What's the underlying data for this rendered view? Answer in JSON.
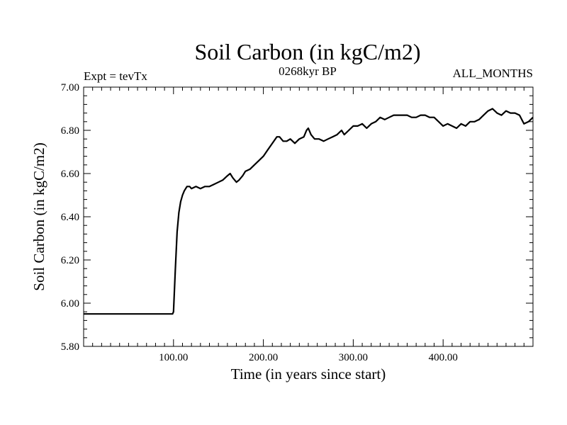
{
  "chart_data": {
    "type": "line",
    "title": "Soil Carbon (in kgC/m2)",
    "subtitle_left": "Expt = tevTx",
    "subtitle_center": "0268kyr BP",
    "subtitle_right": "ALL_MONTHS",
    "xlabel": "Time (in years since start)",
    "ylabel": "Soil Carbon (in kgC/m2)",
    "xlim": [
      0,
      500
    ],
    "ylim": [
      5.8,
      7.0
    ],
    "x_ticks": [
      100,
      200,
      300,
      400
    ],
    "x_tick_labels": [
      "100.00",
      "200.00",
      "300.00",
      "400.00"
    ],
    "y_ticks": [
      5.8,
      6.0,
      6.2,
      6.4,
      6.6,
      6.8,
      7.0
    ],
    "y_tick_labels": [
      "5.80",
      "6.00",
      "6.20",
      "6.40",
      "6.60",
      "6.80",
      "7.00"
    ],
    "grid": false,
    "series": [
      {
        "color": "#000000",
        "x": [
          0,
          99,
          100,
          102,
          104,
          106,
          108,
          110,
          112,
          115,
          118,
          120,
          125,
          130,
          135,
          140,
          145,
          150,
          155,
          160,
          163,
          166,
          170,
          173,
          177,
          180,
          185,
          190,
          195,
          200,
          205,
          210,
          215,
          218,
          222,
          226,
          230,
          235,
          240,
          245,
          248,
          250,
          253,
          257,
          262,
          267,
          272,
          277,
          282,
          287,
          290,
          295,
          300,
          305,
          310,
          315,
          320,
          325,
          330,
          335,
          340,
          345,
          350,
          355,
          360,
          365,
          370,
          375,
          380,
          385,
          390,
          395,
          400,
          405,
          410,
          415,
          420,
          425,
          430,
          435,
          440,
          445,
          450,
          455,
          460,
          465,
          470,
          475,
          480,
          485,
          490,
          495,
          500
        ],
        "y": [
          5.95,
          5.95,
          5.96,
          6.15,
          6.33,
          6.42,
          6.47,
          6.5,
          6.52,
          6.54,
          6.54,
          6.53,
          6.54,
          6.53,
          6.54,
          6.54,
          6.55,
          6.56,
          6.57,
          6.59,
          6.6,
          6.58,
          6.56,
          6.57,
          6.59,
          6.61,
          6.62,
          6.64,
          6.66,
          6.68,
          6.71,
          6.74,
          6.77,
          6.77,
          6.75,
          6.75,
          6.76,
          6.74,
          6.76,
          6.77,
          6.8,
          6.81,
          6.78,
          6.76,
          6.76,
          6.75,
          6.76,
          6.77,
          6.78,
          6.8,
          6.78,
          6.8,
          6.82,
          6.82,
          6.83,
          6.81,
          6.83,
          6.84,
          6.86,
          6.85,
          6.86,
          6.87,
          6.87,
          6.87,
          6.87,
          6.86,
          6.86,
          6.87,
          6.87,
          6.86,
          6.86,
          6.84,
          6.82,
          6.83,
          6.82,
          6.81,
          6.83,
          6.82,
          6.84,
          6.84,
          6.85,
          6.87,
          6.89,
          6.9,
          6.88,
          6.87,
          6.89,
          6.88,
          6.88,
          6.87,
          6.83,
          6.84,
          6.86
        ]
      }
    ]
  }
}
